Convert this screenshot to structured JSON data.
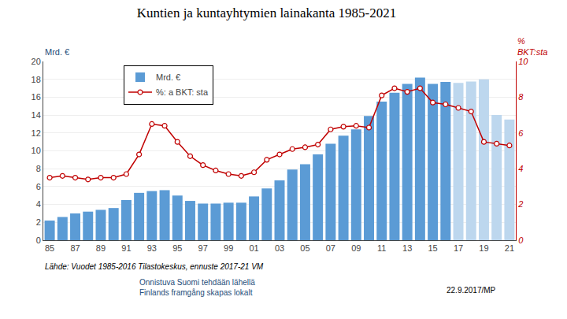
{
  "chart_data": {
    "type": "bar",
    "title": "Kuntien ja kuntayhtymien lainakanta 1985-2021",
    "ylabel": "Mrd. €",
    "y2label": "%\nBKT:sta",
    "annotations": [
      "Lähde: Vuodet 1985-2016 Tilastokeskus, ennuste 2017-21 VM",
      "Onnistuva Suomi tehdään lähellä\nFinlands framgång skapas lokalt",
      "22.9.2017/MP"
    ],
    "categories": [
      "85",
      null,
      "87",
      null,
      "89",
      null,
      "91",
      null,
      "93",
      null,
      "95",
      null,
      "97",
      null,
      "99",
      null,
      "01",
      null,
      "03",
      null,
      "05",
      null,
      "07",
      null,
      "09",
      null,
      "11",
      null,
      "13",
      null,
      "15",
      null,
      "17",
      null,
      "19",
      null,
      "21"
    ],
    "series": [
      {
        "name": "Mrd. €",
        "type": "bar",
        "colors": [
          "#5B9BD5",
          "#5B9BD5",
          "#5B9BD5",
          "#5B9BD5",
          "#5B9BD5",
          "#5B9BD5",
          "#5B9BD5",
          "#5B9BD5",
          "#5B9BD5",
          "#5B9BD5",
          "#5B9BD5",
          "#5B9BD5",
          "#5B9BD5",
          "#5B9BD5",
          "#5B9BD5",
          "#5B9BD5",
          "#5B9BD5",
          "#5B9BD5",
          "#5B9BD5",
          "#5B9BD5",
          "#5B9BD5",
          "#5B9BD5",
          "#5B9BD5",
          "#5B9BD5",
          "#5B9BD5",
          "#5B9BD5",
          "#5B9BD5",
          "#5B9BD5",
          "#5B9BD5",
          "#5B9BD5",
          "#5B9BD5",
          "#5B9BD5",
          "#BDD7EE",
          "#BDD7EE",
          "#BDD7EE",
          "#BDD7EE",
          "#BDD7EE"
        ],
        "values": [
          2.2,
          2.6,
          3.0,
          3.2,
          3.4,
          3.6,
          4.5,
          5.3,
          5.5,
          5.6,
          5.0,
          4.4,
          4.1,
          4.1,
          4.2,
          4.2,
          4.9,
          5.8,
          6.7,
          7.9,
          8.5,
          9.6,
          10.8,
          11.7,
          12.4,
          13.9,
          15.5,
          16.5,
          17.5,
          18.2,
          17.5,
          17.7,
          17.6,
          17.75,
          18.0,
          14.0,
          13.5
        ]
      },
      {
        "name": "%: a BKT: sta",
        "type": "line",
        "axis": "y2",
        "color": "#C00000",
        "marker": "circle",
        "line_style": "solid",
        "values": [
          3.5,
          3.6,
          3.5,
          3.4,
          3.5,
          3.5,
          3.7,
          4.8,
          6.5,
          6.4,
          5.5,
          4.7,
          4.2,
          3.9,
          3.7,
          3.6,
          3.8,
          4.5,
          4.8,
          5.1,
          5.2,
          5.35,
          6.2,
          6.35,
          6.4,
          6.3,
          8.1,
          8.5,
          8.3,
          8.5,
          7.7,
          7.6,
          7.4,
          7.2,
          5.5,
          5.4,
          5.3
        ]
      }
    ],
    "ylim": [
      0,
      20
    ],
    "yticks": [
      0,
      2,
      4,
      6,
      8,
      10,
      12,
      14,
      16,
      18,
      20
    ],
    "y2lim": [
      0,
      10
    ],
    "y2ticks": [
      0,
      2,
      4,
      6,
      8,
      10
    ],
    "grid": true,
    "legend": "upper left"
  }
}
